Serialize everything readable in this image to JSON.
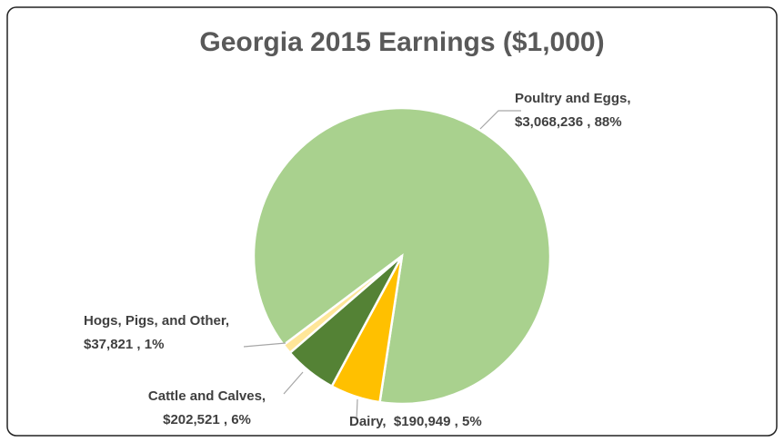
{
  "chart_data": {
    "type": "pie",
    "title": "Georgia 2015 Earnings ($1,000)",
    "categories": [
      "Poultry and Eggs,",
      "Dairy,",
      "Cattle and Calves,",
      "Hogs, Pigs, and Other,"
    ],
    "values": [
      3068236,
      190949,
      202521,
      37821
    ],
    "value_labels": [
      "$3,068,236 , 88%",
      "$190,949 , 5%",
      "$202,521 , 6%",
      "$37,821 , 1%"
    ],
    "colors": [
      "#a9d18e",
      "#ffc000",
      "#548235",
      "#ffe699"
    ]
  }
}
